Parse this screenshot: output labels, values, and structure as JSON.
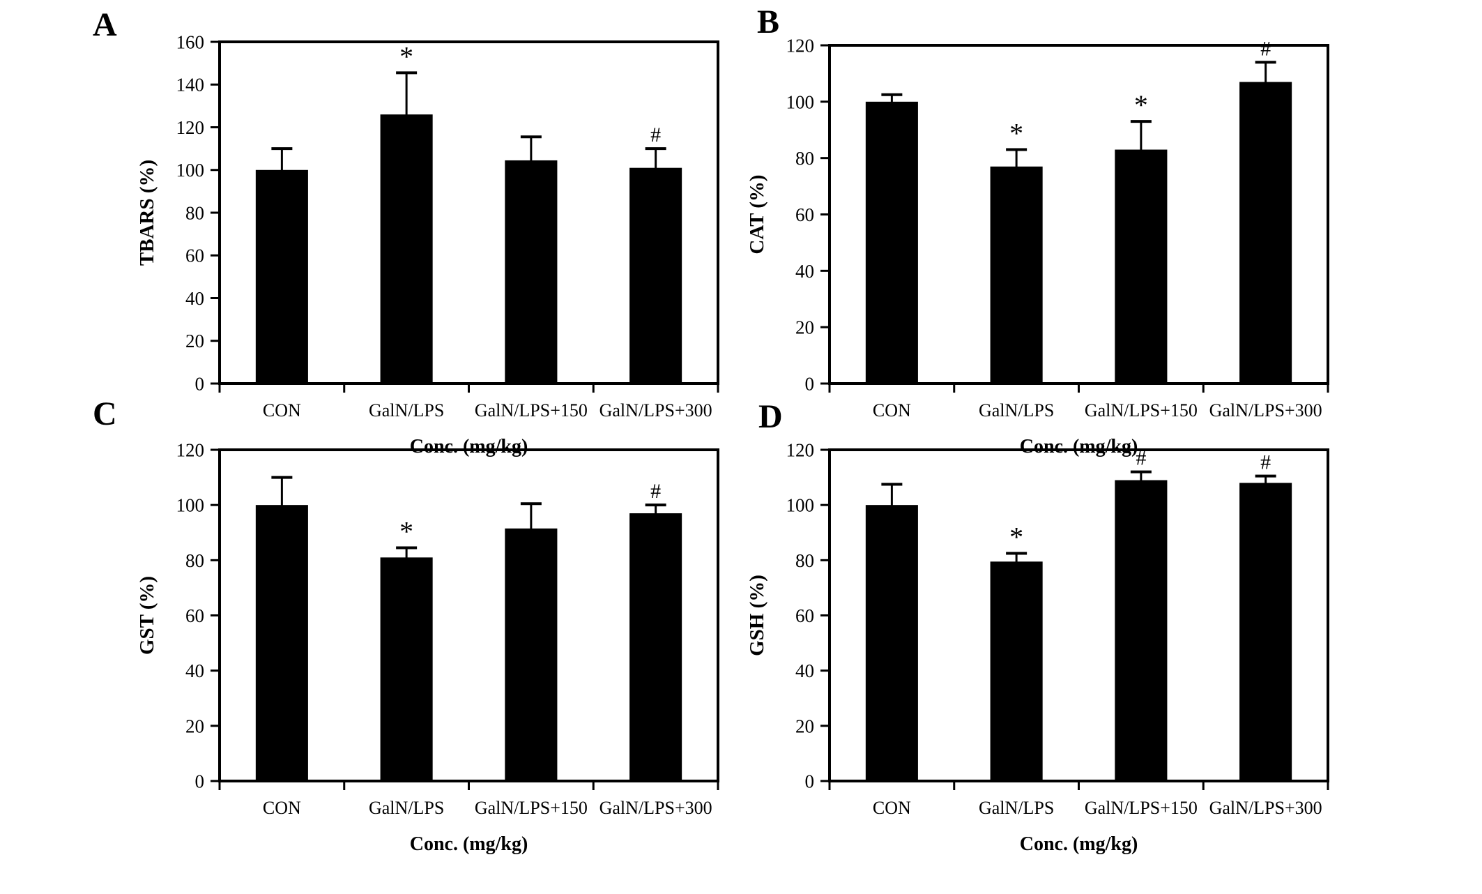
{
  "figure": {
    "background": "#ffffff",
    "axis_color": "#000000",
    "text_color": "#000000"
  },
  "chart_data": [
    {
      "type": "bar",
      "panel_label": "A",
      "ylabel": "TBARS (%)",
      "xlabel": "Conc. (mg/kg)",
      "categories": [
        "CON",
        "GalN/LPS",
        "GalN/LPS+150",
        "GalN/LPS+300"
      ],
      "values": [
        100,
        126,
        104.5,
        101
      ],
      "errors_plus": [
        10,
        19.5,
        11,
        9
      ],
      "sig_markers": [
        "",
        "*",
        "",
        "#"
      ],
      "ylim": [
        0,
        160
      ],
      "yticks": [
        0,
        20,
        40,
        60,
        80,
        100,
        120,
        140,
        160
      ],
      "grid": false,
      "legend": "none",
      "bar_color": "#000000"
    },
    {
      "type": "bar",
      "panel_label": "B",
      "ylabel": "CAT (%)",
      "xlabel": "Conc. (mg/kg)",
      "categories": [
        "CON",
        "GalN/LPS",
        "GalN/LPS+150",
        "GalN/LPS+300"
      ],
      "values": [
        100,
        77,
        83,
        107
      ],
      "errors_plus": [
        2.5,
        6,
        10,
        7
      ],
      "sig_markers": [
        "",
        "*",
        "*",
        "#"
      ],
      "ylim": [
        0,
        120
      ],
      "yticks": [
        0,
        20,
        40,
        60,
        80,
        100,
        120
      ],
      "grid": false,
      "legend": "none",
      "bar_color": "#000000"
    },
    {
      "type": "bar",
      "panel_label": "C",
      "ylabel": "GST (%)",
      "xlabel": "Conc. (mg/kg)",
      "categories": [
        "CON",
        "GalN/LPS",
        "GalN/LPS+150",
        "GalN/LPS+300"
      ],
      "values": [
        100,
        81,
        91.5,
        97
      ],
      "errors_plus": [
        10,
        3.5,
        9,
        3
      ],
      "sig_markers": [
        "",
        "*",
        "",
        "#"
      ],
      "ylim": [
        0,
        120
      ],
      "yticks": [
        0,
        20,
        40,
        60,
        80,
        100,
        120
      ],
      "grid": false,
      "legend": "none",
      "bar_color": "#000000"
    },
    {
      "type": "bar",
      "panel_label": "D",
      "ylabel": "GSH (%)",
      "xlabel": "Conc. (mg/kg)",
      "categories": [
        "CON",
        "GalN/LPS",
        "GalN/LPS+150",
        "GalN/LPS+300"
      ],
      "values": [
        100,
        79.5,
        109,
        108
      ],
      "errors_plus": [
        7.5,
        3,
        3,
        2.5
      ],
      "sig_markers": [
        "",
        "*",
        "#",
        "#"
      ],
      "ylim": [
        0,
        120
      ],
      "yticks": [
        0,
        20,
        40,
        60,
        80,
        100,
        120
      ],
      "grid": false,
      "legend": "none",
      "bar_color": "#000000"
    }
  ]
}
